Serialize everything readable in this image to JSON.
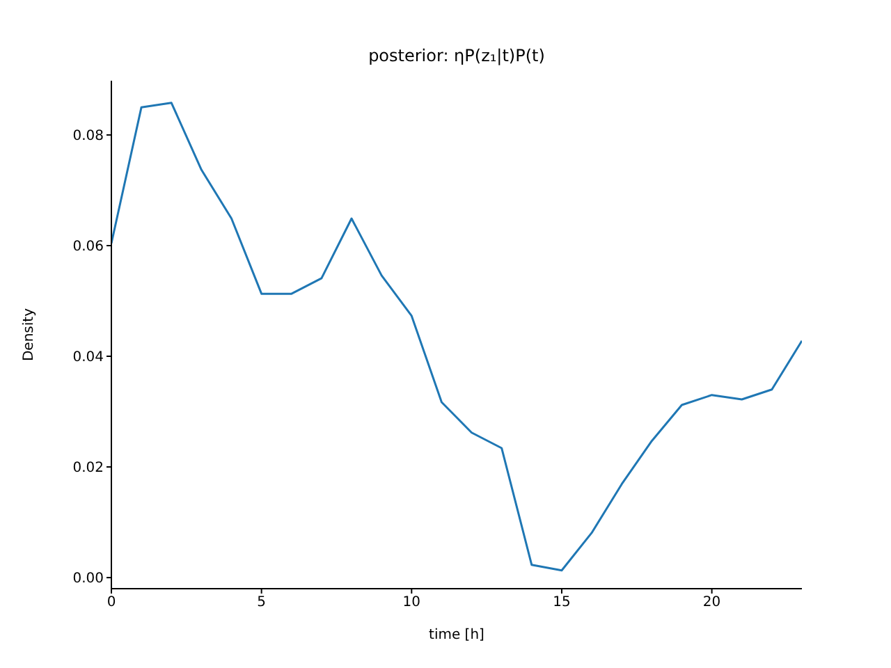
{
  "chart_data": {
    "type": "line",
    "title": "posterior: ηP(z₁|t)P(t)",
    "xlabel": "time [h]",
    "ylabel": "Density",
    "x": [
      0,
      1,
      2,
      3,
      4,
      5,
      6,
      7,
      8,
      9,
      10,
      11,
      12,
      13,
      14,
      15,
      16,
      17,
      18,
      19,
      20,
      21,
      22,
      23
    ],
    "series": [
      {
        "color": "#1f77b4",
        "values": [
          0.0604,
          0.085,
          0.0858,
          0.0737,
          0.0649,
          0.0513,
          0.0513,
          0.0541,
          0.0649,
          0.0546,
          0.0473,
          0.0317,
          0.0262,
          0.0234,
          0.0023,
          0.0013,
          0.0081,
          0.0169,
          0.0247,
          0.0312,
          0.033,
          0.0322,
          0.034,
          0.0428
        ]
      }
    ],
    "xlim": [
      0,
      23
    ],
    "ylim": [
      -0.002,
      0.0898
    ],
    "xticks": [
      0,
      5,
      10,
      15,
      20
    ],
    "yticks": [
      {
        "value": 0,
        "label": "0.00"
      },
      {
        "value": 0.02,
        "label": "0.02"
      },
      {
        "value": 0.04,
        "label": "0.04"
      },
      {
        "value": 0.06,
        "label": "0.06"
      },
      {
        "value": 0.08,
        "label": "0.08"
      }
    ]
  }
}
